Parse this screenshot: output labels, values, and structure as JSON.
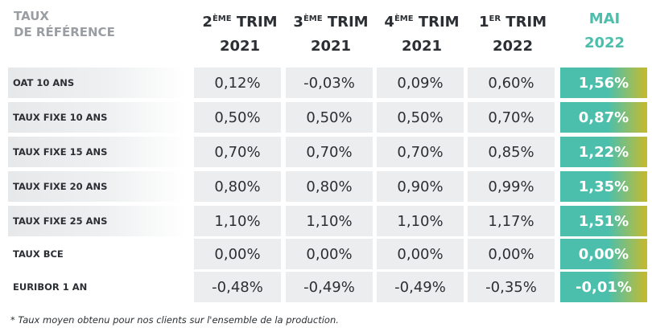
{
  "corner": {
    "line1": "TAUX",
    "line2": "DE RÉFÉRENCE"
  },
  "columns": [
    {
      "num": "2",
      "suffix": "ÈME",
      "word": "TRIM",
      "year": "2021"
    },
    {
      "num": "3",
      "suffix": "ÈME",
      "word": "TRIM",
      "year": "2021"
    },
    {
      "num": "4",
      "suffix": "ÈME",
      "word": "TRIM",
      "year": "2021"
    },
    {
      "num": "1",
      "suffix": "ER",
      "word": "TRIM",
      "year": "2022"
    },
    {
      "label": "MAI",
      "year": "2022",
      "highlight": true
    }
  ],
  "rows": [
    {
      "label": "OAT 10 ANS",
      "values": [
        "0,12%",
        "-0,03%",
        "0,09%",
        "0,60%",
        "1,56%"
      ]
    },
    {
      "label": "TAUX FIXE 10 ANS",
      "values": [
        "0,50%",
        "0,50%",
        "0,50%",
        "0,70%",
        "0,87%"
      ]
    },
    {
      "label": "TAUX FIXE 15 ANS",
      "values": [
        "0,70%",
        "0,70%",
        "0,70%",
        "0,85%",
        "1,22%"
      ]
    },
    {
      "label": "TAUX FIXE 20 ANS",
      "values": [
        "0,80%",
        "0,80%",
        "0,90%",
        "0,99%",
        "1,35%"
      ]
    },
    {
      "label": "TAUX FIXE 25 ANS",
      "values": [
        "1,10%",
        "1,10%",
        "1,10%",
        "1,17%",
        "1,51%"
      ]
    },
    {
      "label": "TAUX BCE",
      "values": [
        "0,00%",
        "0,00%",
        "0,00%",
        "0,00%",
        "0,00%"
      ]
    },
    {
      "label": "EURIBOR 1 AN",
      "values": [
        "-0,48%",
        "-0,49%",
        "-0,49%",
        "-0,35%",
        "-0,01%"
      ]
    }
  ],
  "footnote": "* Taux moyen obtenu pour nos clients sur l'ensemble de la production.",
  "colors": {
    "accent": "#4bbfab",
    "accent_end": "#c7b92a",
    "cell_bg": "#ecedee",
    "text": "#2b2f33"
  }
}
